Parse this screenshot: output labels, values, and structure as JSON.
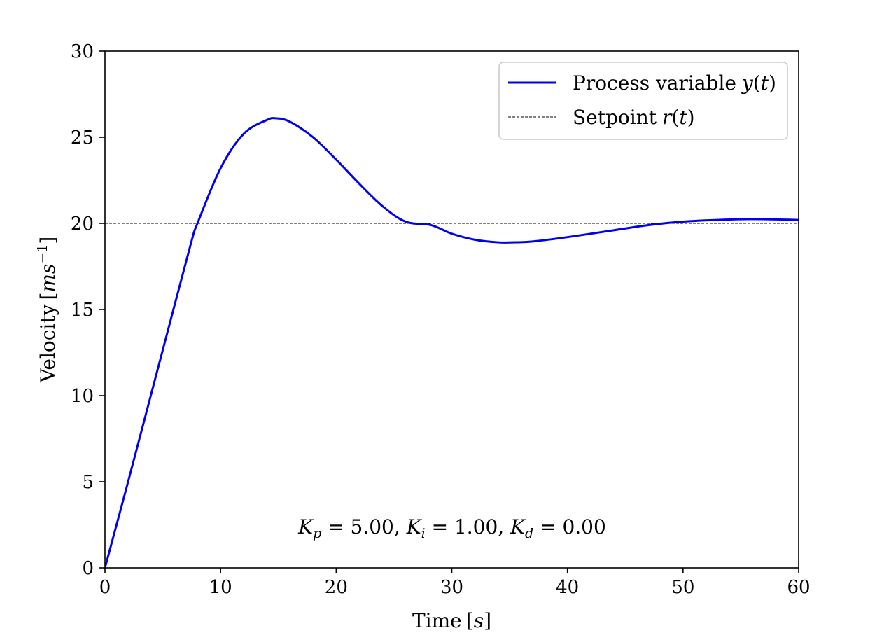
{
  "chart_data": {
    "type": "line",
    "xlabel": {
      "text": "Time",
      "unit_var": "s"
    },
    "ylabel": {
      "text": "Velocity",
      "unit_base": "ms",
      "unit_exp": "−1"
    },
    "xlim": [
      0,
      60
    ],
    "ylim": [
      0,
      30
    ],
    "x_ticks": [
      0,
      10,
      20,
      30,
      40,
      50,
      60
    ],
    "y_ticks": [
      0,
      5,
      10,
      15,
      20,
      25,
      30
    ],
    "x_tick_labels": [
      "0",
      "10",
      "20",
      "30",
      "40",
      "50",
      "60"
    ],
    "y_tick_labels": [
      "0",
      "5",
      "10",
      "15",
      "20",
      "25",
      "30"
    ],
    "grid": false,
    "legend": {
      "placement": "top-right",
      "entries": [
        {
          "name": "Process variable",
          "var": "y",
          "arg": "t",
          "style": "solid",
          "color": "#0000ee"
        },
        {
          "name": "Setpoint",
          "var": "r",
          "arg": "t",
          "style": "dashed",
          "color": "#000000"
        }
      ]
    },
    "annotation": {
      "parts": [
        {
          "sym": "K",
          "sub": "p",
          "val": "5.00"
        },
        {
          "sym": "K",
          "sub": "i",
          "val": "1.00"
        },
        {
          "sym": "K",
          "sub": "d",
          "val": "0.00"
        }
      ]
    },
    "series": [
      {
        "name": "Process variable y(t)",
        "color": "#0000ee",
        "x": [
          0,
          2,
          4,
          6,
          7.5,
          8,
          10,
          12,
          14,
          14.8,
          16,
          18,
          20,
          22,
          24,
          26,
          28.2,
          30,
          32,
          34,
          35.5,
          37,
          40,
          44,
          47,
          50,
          53,
          56,
          60
        ],
        "y": [
          0,
          5.0,
          10.1,
          15.2,
          19.0,
          20.0,
          23.2,
          25.2,
          26.0,
          26.1,
          25.9,
          25.0,
          23.7,
          22.3,
          21.0,
          20.1,
          19.9,
          19.4,
          19.05,
          18.9,
          18.9,
          18.95,
          19.2,
          19.6,
          19.9,
          20.1,
          20.2,
          20.25,
          20.2
        ]
      },
      {
        "name": "Setpoint r(t)",
        "color": "#000000",
        "x": [
          0,
          60
        ],
        "y": [
          20,
          20
        ]
      }
    ]
  }
}
